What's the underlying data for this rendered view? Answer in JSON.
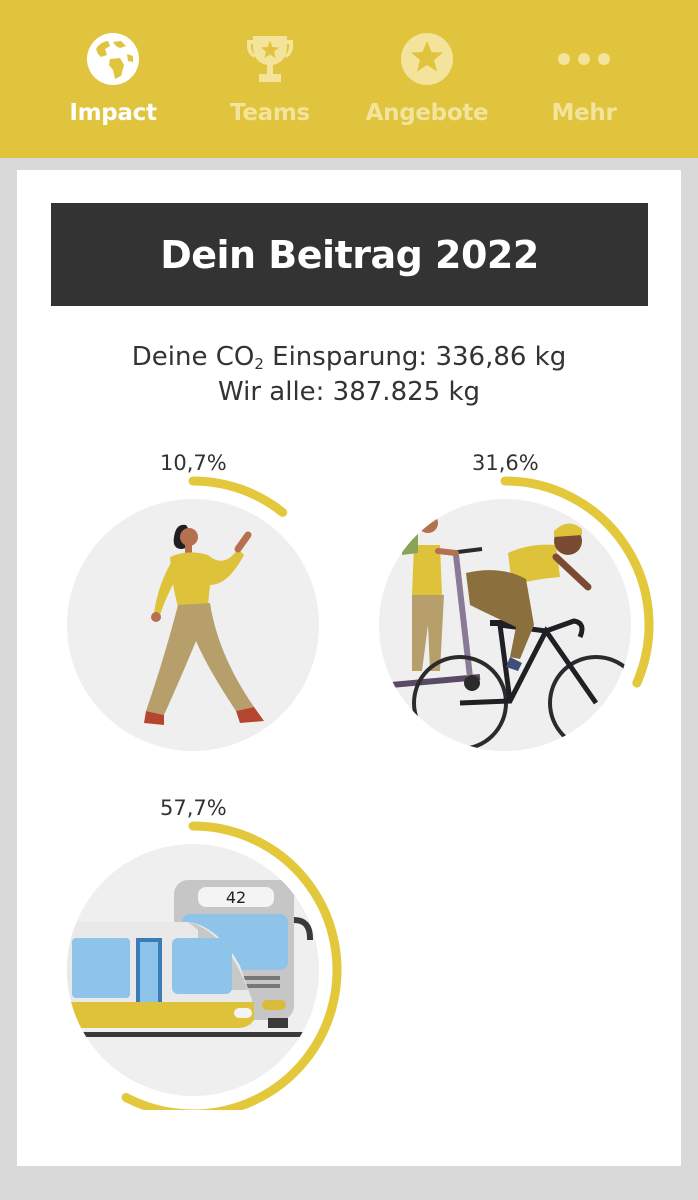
{
  "nav": {
    "items": [
      {
        "label": "Impact",
        "icon": "globe-icon",
        "active": true
      },
      {
        "label": "Teams",
        "icon": "trophy-icon",
        "active": false
      },
      {
        "label": "Angebote",
        "icon": "star-badge-icon",
        "active": false
      },
      {
        "label": "Mehr",
        "icon": "more-dots-icon",
        "active": false
      }
    ]
  },
  "banner": {
    "title": "Dein Beitrag 2022"
  },
  "summary": {
    "personal_prefix": "Deine CO",
    "personal_sub": "2",
    "personal_suffix": " Einsparung: 336,86 kg",
    "all_text": "Wir alle: 387.825 kg"
  },
  "modes": [
    {
      "name": "walking",
      "percent_label": "10,7%",
      "share": 0.107
    },
    {
      "name": "bike-scooter",
      "percent_label": "31,6%",
      "share": 0.316
    },
    {
      "name": "public-transit",
      "percent_label": "57,7%",
      "share": 0.577
    }
  ],
  "transit": {
    "bus_number": "42"
  },
  "colors": {
    "brand_yellow": "#e0c43e",
    "arc_yellow": "#e2c83a",
    "banner_dark": "#333333",
    "circle_bg": "#efefef"
  }
}
